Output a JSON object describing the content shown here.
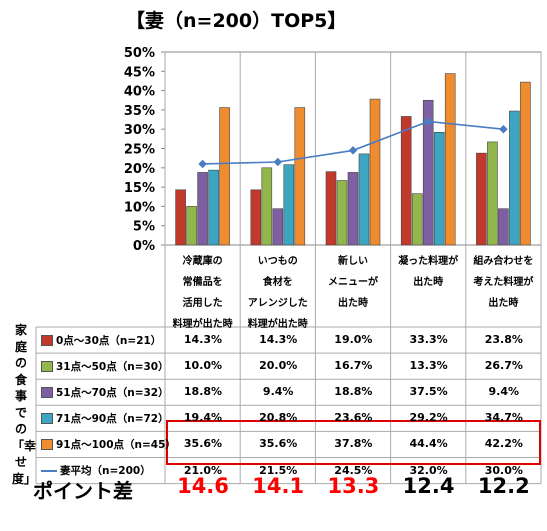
{
  "title": "【妻（n=200）TOP5】",
  "side_label": "家庭の食事での「幸せ度」",
  "point_label": "ポイント差",
  "colors": {
    "0点～30点（n=21）": "#c0392b",
    "31点～50点（n=30）": "#92b64b",
    "51点～70点（n=32）": "#7e60a2",
    "71点～90点（n=72）": "#3ca5c1",
    "91点～100点（n=45）": "#f08c30",
    "妻平均（n=200）": "#4a7cc2",
    "diff_red": "#ff0000",
    "diff_black": "#000000"
  },
  "chart_data": {
    "type": "bar",
    "categories": [
      "冷蔵庫の\n常備品を\n活用した\n料理が出た時",
      "いつもの\n食材を\nアレンジした\n料理が出た時",
      "新しい\nメニューが\n出た時",
      "凝った料理が\n出た時",
      "組み合わせを\n考えた料理が\n出た時"
    ],
    "series": [
      {
        "name": "0点～30点（n=21）",
        "type": "bar",
        "values": [
          14.3,
          14.3,
          19.0,
          33.3,
          23.8
        ],
        "labels": [
          "14.3%",
          "14.3%",
          "19.0%",
          "33.3%",
          "23.8%"
        ]
      },
      {
        "name": "31点～50点（n=30）",
        "type": "bar",
        "values": [
          10.0,
          20.0,
          16.7,
          13.3,
          26.7
        ],
        "labels": [
          "10.0%",
          "20.0%",
          "16.7%",
          "13.3%",
          "26.7%"
        ]
      },
      {
        "name": "51点～70点（n=32）",
        "type": "bar",
        "values": [
          18.8,
          9.4,
          18.8,
          37.5,
          9.4
        ],
        "labels": [
          "18.8%",
          "9.4%",
          "18.8%",
          "37.5%",
          "9.4%"
        ]
      },
      {
        "name": "71点～90点（n=72）",
        "type": "bar",
        "values": [
          19.4,
          20.8,
          23.6,
          29.2,
          34.7
        ],
        "labels": [
          "19.4%",
          "20.8%",
          "23.6%",
          "29.2%",
          "34.7%"
        ]
      },
      {
        "name": "91点～100点（n=45）",
        "type": "bar",
        "values": [
          35.6,
          35.6,
          37.8,
          44.4,
          42.2
        ],
        "labels": [
          "35.6%",
          "35.6%",
          "37.8%",
          "44.4%",
          "42.2%"
        ]
      },
      {
        "name": "妻平均（n=200）",
        "type": "line",
        "values": [
          21.0,
          21.5,
          24.5,
          32.0,
          30.0
        ],
        "labels": [
          "21.0%",
          "21.5%",
          "24.5%",
          "32.0%",
          "30.0%"
        ]
      }
    ],
    "ylim": [
      0,
      50
    ],
    "yticks": [
      "0%",
      "5%",
      "10%",
      "15%",
      "20%",
      "25%",
      "30%",
      "35%",
      "40%",
      "45%",
      "50%"
    ],
    "grid": false,
    "legend": "table-below",
    "point_differences": [
      {
        "value": "14.6",
        "color": "red"
      },
      {
        "value": "14.1",
        "color": "red"
      },
      {
        "value": "13.3",
        "color": "red"
      },
      {
        "value": "12.4",
        "color": "black"
      },
      {
        "value": "12.2",
        "color": "black"
      }
    ]
  }
}
